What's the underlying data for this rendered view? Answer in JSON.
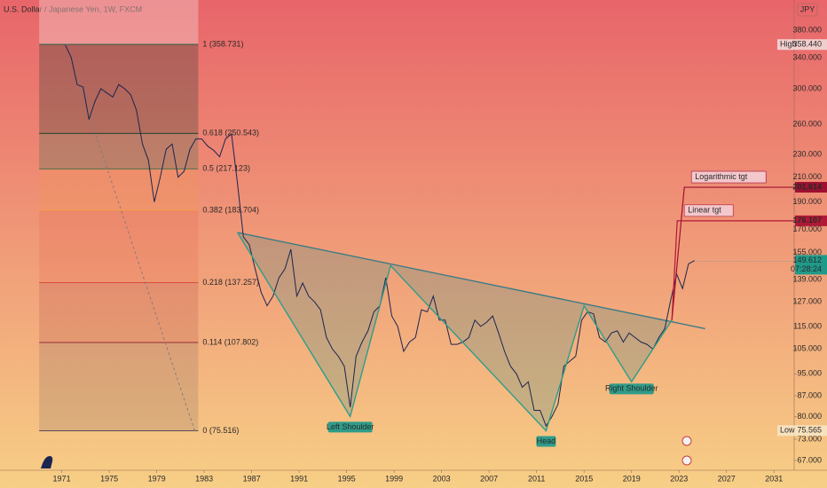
{
  "chart_data": {
    "type": "line",
    "title": "U.S. Dollar / Japanese Yen, 1W, FXCM",
    "currency": "JPY",
    "log_scale": true,
    "color": "#1b2550",
    "xlim": [
      1965.8,
      2032.7
    ],
    "xticks": [
      1971,
      1975,
      1979,
      1983,
      1987,
      1991,
      1995,
      1999,
      2003,
      2007,
      2011,
      2015,
      2019,
      2023,
      2027,
      2031
    ],
    "ylim": [
      64.4,
      429
    ],
    "yticks": [
      {
        "value": 380,
        "label": "380.000"
      },
      {
        "value": 340,
        "label": "340.000"
      },
      {
        "value": 300,
        "label": "300.000"
      },
      {
        "value": 260,
        "label": "260.000"
      },
      {
        "value": 230,
        "label": "230.000"
      },
      {
        "value": 210,
        "label": "210.000"
      },
      {
        "value": 190,
        "label": "190.000"
      },
      {
        "value": 170,
        "label": "170.000"
      },
      {
        "value": 155,
        "label": "155.000"
      },
      {
        "value": 139,
        "label": "139.000"
      },
      {
        "value": 127,
        "label": "127.000"
      },
      {
        "value": 115,
        "label": "115.000"
      },
      {
        "value": 105,
        "label": "105.000"
      },
      {
        "value": 95,
        "label": "95.000"
      },
      {
        "value": 87,
        "label": "87.000"
      },
      {
        "value": 80,
        "label": "80.000"
      },
      {
        "value": 73,
        "label": "73.000"
      },
      {
        "value": 67,
        "label": "67.000"
      }
    ],
    "x": [
      1971.3,
      1971.8,
      1972.3,
      1972.8,
      1973.3,
      1973.8,
      1974.3,
      1974.8,
      1975.3,
      1975.8,
      1976.3,
      1976.8,
      1977.3,
      1977.8,
      1978.3,
      1978.8,
      1979.3,
      1979.8,
      1980.3,
      1980.8,
      1981.3,
      1981.8,
      1982.3,
      1982.8,
      1983.3,
      1983.8,
      1984.3,
      1984.8,
      1985.3,
      1985.8,
      1986.3,
      1986.8,
      1987.3,
      1987.8,
      1988.3,
      1988.8,
      1989.3,
      1989.8,
      1990.3,
      1990.8,
      1991.3,
      1991.8,
      1992.3,
      1992.8,
      1993.3,
      1993.8,
      1994.3,
      1994.8,
      1995.3,
      1995.8,
      1996.3,
      1996.8,
      1997.3,
      1997.8,
      1998.3,
      1998.8,
      1999.3,
      1999.8,
      2000.3,
      2000.8,
      2001.3,
      2001.8,
      2002.3,
      2002.8,
      2003.3,
      2003.8,
      2004.3,
      2004.8,
      2005.3,
      2005.8,
      2006.3,
      2006.8,
      2007.3,
      2007.8,
      2008.3,
      2008.8,
      2009.3,
      2009.8,
      2010.3,
      2010.8,
      2011.3,
      2011.8,
      2012.3,
      2012.8,
      2013.3,
      2013.8,
      2014.3,
      2014.8,
      2015.3,
      2015.8,
      2016.3,
      2016.8,
      2017.3,
      2017.8,
      2018.3,
      2018.8,
      2019.3,
      2019.8,
      2020.3,
      2020.8,
      2021.3,
      2021.8,
      2022.3,
      2022.8,
      2023.3,
      2023.8,
      2024.3
    ],
    "values": [
      358,
      340,
      305,
      302,
      265,
      285,
      300,
      295,
      290,
      305,
      300,
      293,
      275,
      240,
      225,
      190,
      210,
      235,
      240,
      210,
      215,
      235,
      245,
      245,
      238,
      234,
      228,
      245,
      250,
      205,
      165,
      160,
      145,
      132,
      125,
      130,
      140,
      145,
      157,
      130,
      137,
      130,
      127,
      123,
      110,
      105,
      102,
      98,
      83,
      102,
      108,
      113,
      122,
      125,
      140,
      120,
      115,
      104,
      108,
      110,
      123,
      122,
      130,
      118,
      118,
      107,
      107,
      108,
      110,
      118,
      115,
      117,
      120,
      112,
      104,
      98,
      95,
      90,
      92,
      82,
      82,
      77,
      80,
      84,
      98,
      100,
      102,
      118,
      122,
      121,
      110,
      108,
      112,
      113,
      108,
      112,
      110,
      108,
      107,
      105,
      110,
      114,
      128,
      142,
      134,
      148,
      150
    ],
    "fib_x": [
      1969.1,
      1982.5
    ],
    "fib_levels": [
      {
        "value": 358.731,
        "label": "1 (358.731)",
        "color": "#2b6b4a"
      },
      {
        "value": 250.543,
        "label": "0.618 (250.543)",
        "color": "#1f3b2a"
      },
      {
        "value": 217.123,
        "label": "0.5 (217.123)",
        "color": "#3d6b4e"
      },
      {
        "value": 183.704,
        "label": "0.382 (183.704)",
        "color": "#f2a040"
      },
      {
        "value": 137.257,
        "label": "0.218 (137.257)",
        "color": "#e0503c"
      },
      {
        "value": 107.802,
        "label": "0.114 (107.802)",
        "color": "#9c2a3a"
      },
      {
        "value": 75.516,
        "label": "0 (75.516)",
        "color": "#5a4a5a"
      }
    ],
    "pattern": {
      "x": [
        1985.8,
        1995.3,
        1998.7,
        2011.8,
        2015.0,
        2019.0,
        2022.4
      ],
      "y": [
        168,
        80,
        147,
        75.5,
        125,
        92,
        118
      ]
    },
    "neckline": {
      "x": [
        1985.8,
        2025.2
      ],
      "y": [
        168,
        114
      ]
    },
    "annotations": [
      "Left Shoulder",
      "Head",
      "Right Shoulder"
    ],
    "targets": [
      {
        "label": "Logarithmic tgt",
        "value": 201.614
      },
      {
        "label": "Linear tgt",
        "value": 176.107
      }
    ],
    "high": {
      "label": "High",
      "value": {
        "value": 358.44,
        "label": "358.440"
      }
    },
    "low": {
      "label": "Low",
      "value": 75.565
    },
    "last": 149.612,
    "countdown": "07:28:24"
  }
}
